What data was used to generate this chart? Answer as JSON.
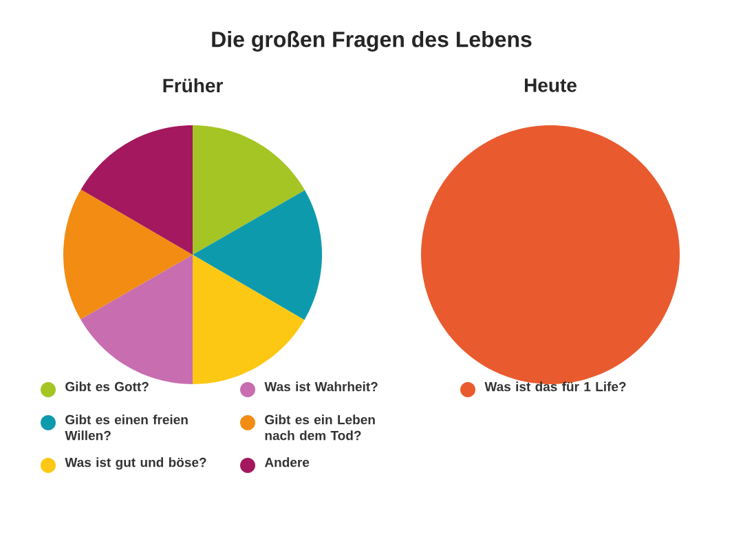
{
  "chart_data": [
    {
      "type": "pie",
      "title": "Die großen Fragen des Lebens",
      "subtitle": "Früher",
      "categories": [
        "Gibt es Gott?",
        "Gibt es einen freien Willen?",
        "Was ist gut und böse?",
        "Was ist Wahrheit?",
        "Gibt es ein Leben nach dem Tod?",
        "Andere"
      ],
      "values": [
        16.7,
        16.7,
        16.6,
        16.7,
        16.7,
        16.6
      ],
      "colors": [
        "#a5c525",
        "#0e9aad",
        "#fcc814",
        "#c86db0",
        "#f28c12",
        "#a3185e"
      ],
      "legend": "bottom"
    },
    {
      "type": "pie",
      "title": "Heute",
      "categories": [
        "Was ist das für 1 Life?"
      ],
      "values": [
        100
      ],
      "colors": [
        "#e95b2f"
      ],
      "legend": "bottom"
    }
  ]
}
